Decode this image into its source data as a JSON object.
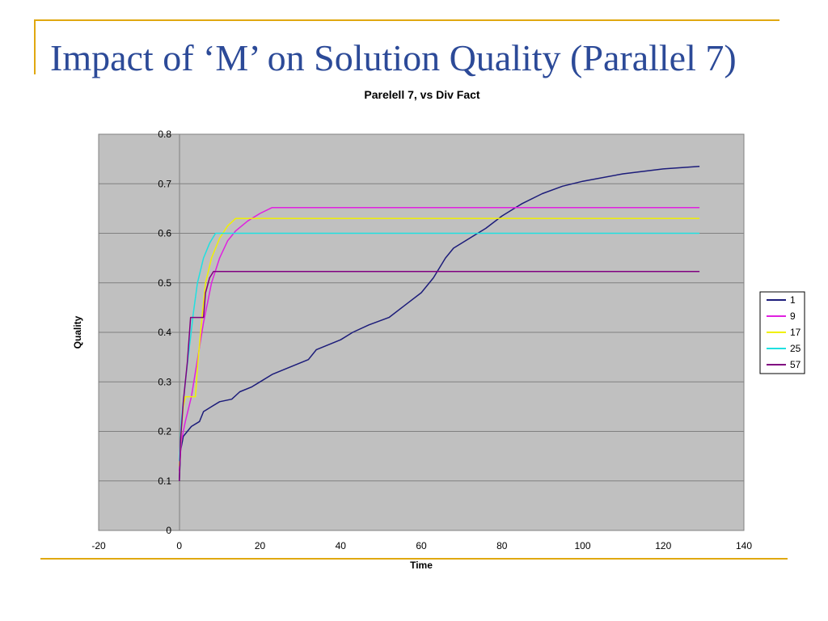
{
  "slide": {
    "title": "Impact of ‘M’ on Solution Quality (Parallel 7)",
    "accent_color": "#e0a810",
    "title_color": "#2c4a98"
  },
  "chart_data": {
    "type": "line",
    "title": "Parelell 7, vs Div Fact",
    "xlabel": "Time",
    "ylabel": "Quality",
    "xlim": [
      -20,
      140
    ],
    "ylim": [
      0,
      0.8
    ],
    "x_ticks": [
      "-20",
      "0",
      "20",
      "40",
      "60",
      "80",
      "100",
      "120",
      "140"
    ],
    "y_ticks": [
      "0",
      "0.1",
      "0.2",
      "0.3",
      "0.4",
      "0.5",
      "0.6",
      "0.7",
      "0.8"
    ],
    "grid": "horizontal",
    "plot_background": "#c0c0c0",
    "legend_position": "right",
    "series": [
      {
        "name": "1",
        "color": "#1c1c7a",
        "points": [
          [
            0,
            0.1
          ],
          [
            0.3,
            0.16
          ],
          [
            1,
            0.19
          ],
          [
            2,
            0.2
          ],
          [
            3,
            0.21
          ],
          [
            5,
            0.22
          ],
          [
            6,
            0.24
          ],
          [
            8,
            0.25
          ],
          [
            10,
            0.26
          ],
          [
            13,
            0.265
          ],
          [
            15,
            0.28
          ],
          [
            18,
            0.29
          ],
          [
            20,
            0.3
          ],
          [
            23,
            0.315
          ],
          [
            26,
            0.325
          ],
          [
            29,
            0.335
          ],
          [
            32,
            0.345
          ],
          [
            34,
            0.365
          ],
          [
            37,
            0.375
          ],
          [
            40,
            0.385
          ],
          [
            43,
            0.4
          ],
          [
            47,
            0.415
          ],
          [
            52,
            0.43
          ],
          [
            56,
            0.455
          ],
          [
            60,
            0.48
          ],
          [
            63,
            0.51
          ],
          [
            66,
            0.55
          ],
          [
            68,
            0.57
          ],
          [
            72,
            0.59
          ],
          [
            76,
            0.61
          ],
          [
            80,
            0.635
          ],
          [
            85,
            0.66
          ],
          [
            90,
            0.68
          ],
          [
            95,
            0.695
          ],
          [
            100,
            0.705
          ],
          [
            110,
            0.72
          ],
          [
            120,
            0.73
          ],
          [
            129,
            0.735
          ]
        ]
      },
      {
        "name": "9",
        "color": "#e020e0",
        "points": [
          [
            0,
            0.12
          ],
          [
            0.5,
            0.18
          ],
          [
            1.5,
            0.22
          ],
          [
            3,
            0.27
          ],
          [
            4,
            0.32
          ],
          [
            5,
            0.37
          ],
          [
            6,
            0.42
          ],
          [
            7,
            0.46
          ],
          [
            8,
            0.5
          ],
          [
            10,
            0.55
          ],
          [
            12,
            0.585
          ],
          [
            14,
            0.605
          ],
          [
            17,
            0.625
          ],
          [
            20,
            0.64
          ],
          [
            23,
            0.652
          ],
          [
            129,
            0.652
          ]
        ]
      },
      {
        "name": "17",
        "color": "#f0f000",
        "points": [
          [
            0,
            0.13
          ],
          [
            0.5,
            0.2
          ],
          [
            1,
            0.25
          ],
          [
            1.5,
            0.27
          ],
          [
            4,
            0.27
          ],
          [
            4.5,
            0.33
          ],
          [
            5.5,
            0.42
          ],
          [
            6.5,
            0.5
          ],
          [
            8,
            0.55
          ],
          [
            10,
            0.59
          ],
          [
            12,
            0.615
          ],
          [
            14,
            0.63
          ],
          [
            129,
            0.63
          ]
        ]
      },
      {
        "name": "25",
        "color": "#20e0e0",
        "points": [
          [
            0,
            0.14
          ],
          [
            0.5,
            0.22
          ],
          [
            1.5,
            0.3
          ],
          [
            2.5,
            0.37
          ],
          [
            3.5,
            0.44
          ],
          [
            4.5,
            0.5
          ],
          [
            6,
            0.55
          ],
          [
            7.5,
            0.58
          ],
          [
            9,
            0.6
          ],
          [
            129,
            0.6
          ]
        ]
      },
      {
        "name": "57",
        "color": "#800080",
        "points": [
          [
            0,
            0.1
          ],
          [
            0.3,
            0.18
          ],
          [
            1,
            0.26
          ],
          [
            2,
            0.34
          ],
          [
            2.8,
            0.43
          ],
          [
            6,
            0.43
          ],
          [
            6.5,
            0.48
          ],
          [
            7.5,
            0.51
          ],
          [
            8.5,
            0.523
          ],
          [
            129,
            0.523
          ]
        ]
      }
    ]
  }
}
